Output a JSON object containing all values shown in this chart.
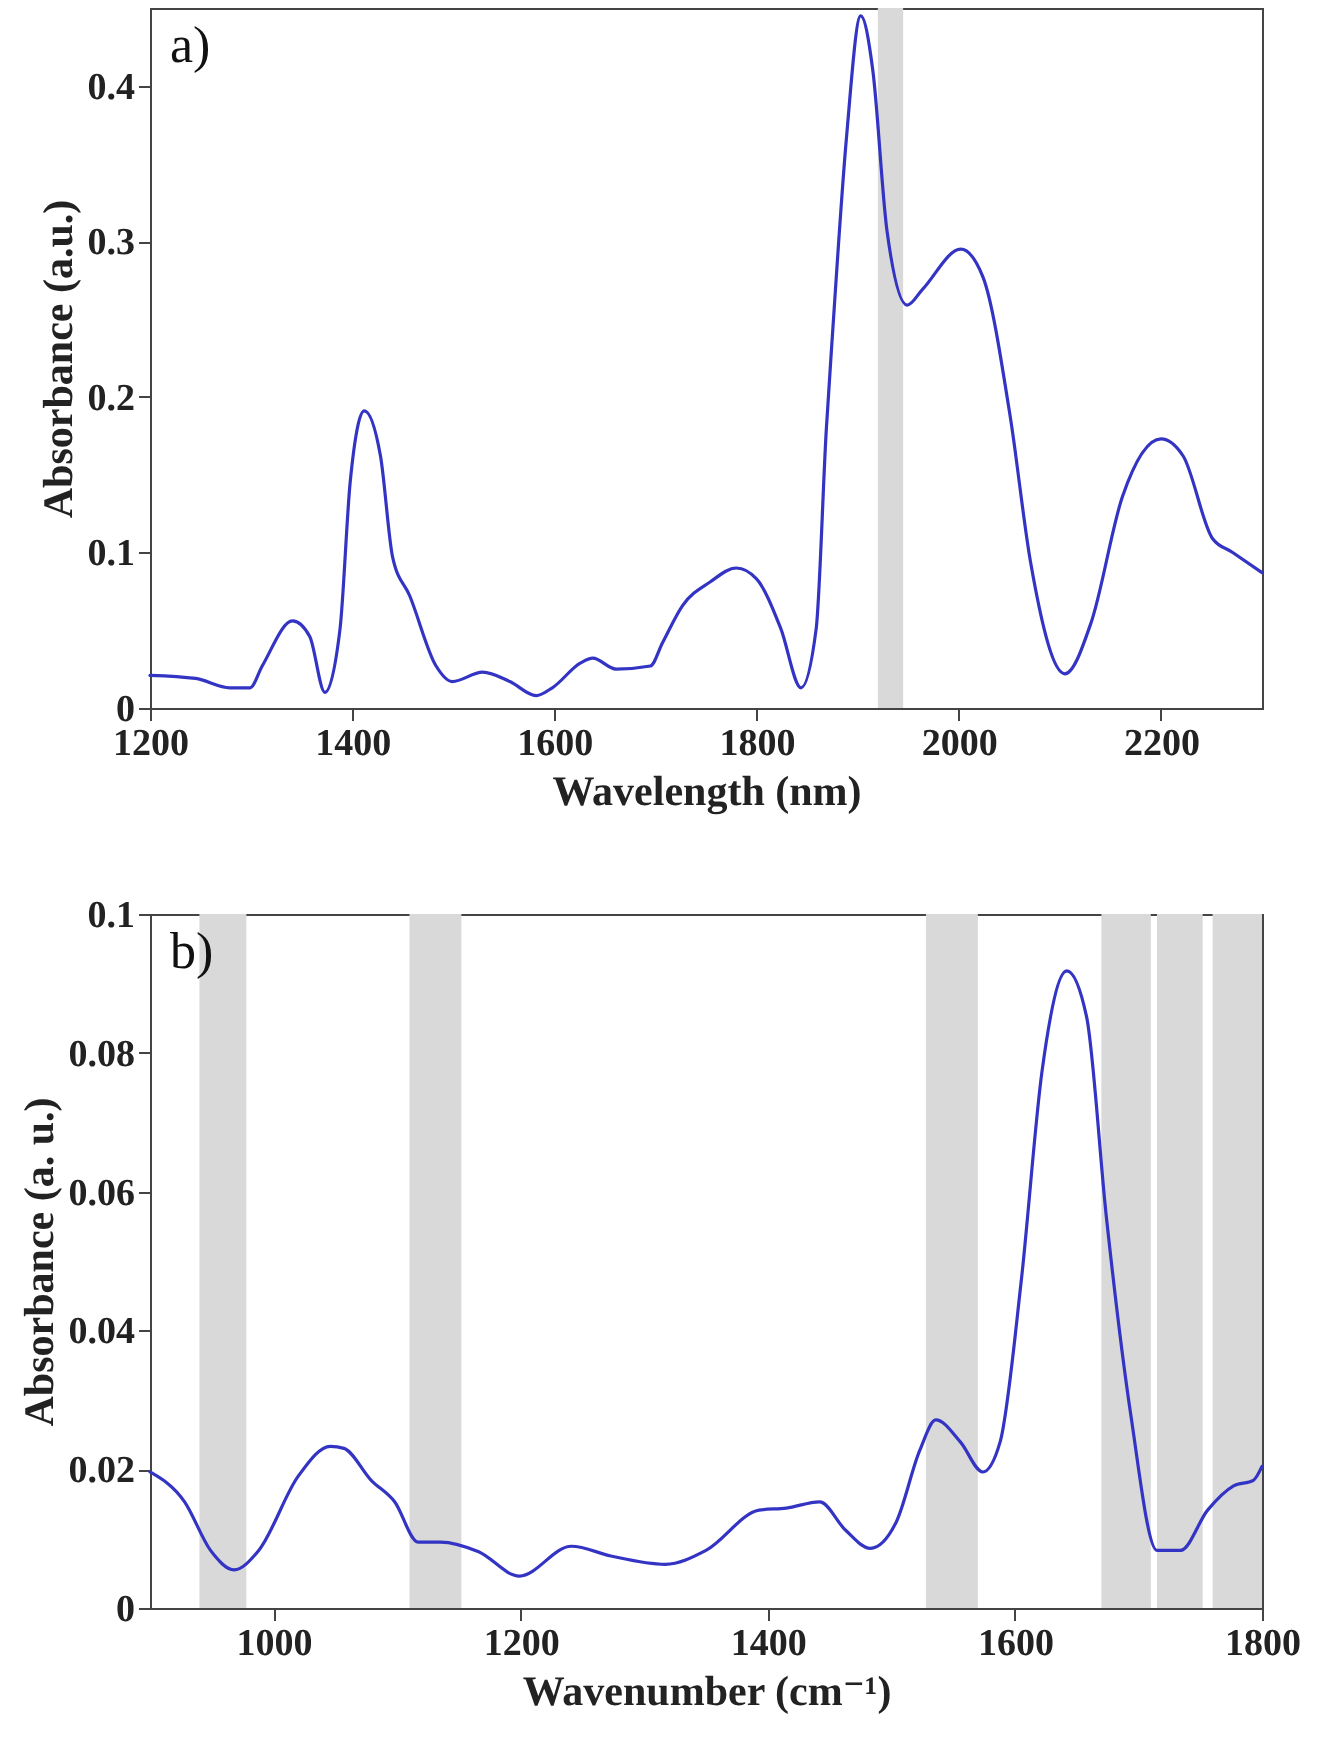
{
  "chart_data": [
    {
      "type": "line",
      "xlabel": "Wavelength (nm)",
      "ylabel": "Absorbance (a.u.)",
      "annotations": [
        "a)"
      ],
      "xlim": [
        1200,
        2300
      ],
      "ylim": [
        0,
        0.45
      ],
      "xticks": [
        1200,
        1400,
        1600,
        1800,
        2000,
        2200
      ],
      "yticks": [
        0,
        0.1,
        0.2,
        0.3,
        0.4
      ],
      "grid": false,
      "marker": "none",
      "line_style": "solid",
      "bands": [
        {
          "axis": "x",
          "from": 1920,
          "to": 1945,
          "color": "#d9d9d9"
        }
      ],
      "series": [
        {
          "color": "#3434c4",
          "x": [
            1200,
            1245,
            1279,
            1299,
            1311,
            1341,
            1358,
            1373,
            1388,
            1398,
            1412,
            1428,
            1440,
            1457,
            1483,
            1499,
            1529,
            1556,
            1582,
            1598,
            1626,
            1638,
            1661,
            1695,
            1707,
            1727,
            1754,
            1780,
            1800,
            1824,
            1844,
            1859,
            1869,
            1875,
            1889,
            1903,
            1915,
            1929,
            1949,
            1964,
            2002,
            2024,
            2051,
            2071,
            2105,
            2131,
            2162,
            2200,
            2222,
            2251,
            2271,
            2300
          ],
          "values": [
            0.021,
            0.019,
            0.013,
            0.013,
            0.027,
            0.056,
            0.046,
            0.01,
            0.051,
            0.145,
            0.191,
            0.162,
            0.097,
            0.072,
            0.027,
            0.017,
            0.023,
            0.017,
            0.008,
            0.013,
            0.029,
            0.032,
            0.025,
            0.027,
            0.042,
            0.066,
            0.081,
            0.09,
            0.083,
            0.051,
            0.013,
            0.051,
            0.179,
            0.239,
            0.367,
            0.445,
            0.41,
            0.307,
            0.259,
            0.269,
            0.295,
            0.277,
            0.187,
            0.094,
            0.022,
            0.055,
            0.136,
            0.173,
            0.162,
            0.109,
            0.1,
            0.087
          ]
        }
      ]
    },
    {
      "type": "line",
      "xlabel": "Wavenumber (cm⁻¹)",
      "ylabel": "Absorbance (a. u.)",
      "annotations": [
        "b)"
      ],
      "xlim": [
        900,
        1800
      ],
      "ylim": [
        0,
        0.1
      ],
      "xticks": [
        1000,
        1200,
        1400,
        1600,
        1800
      ],
      "yticks": [
        0,
        0.02,
        0.04,
        0.06,
        0.08,
        0.1
      ],
      "grid": false,
      "marker": "none",
      "line_style": "solid",
      "bands": [
        {
          "axis": "x",
          "from": 940,
          "to": 978,
          "color": "#d9d9d9"
        },
        {
          "axis": "x",
          "from": 1110,
          "to": 1152,
          "color": "#d9d9d9"
        },
        {
          "axis": "x",
          "from": 1528,
          "to": 1570,
          "color": "#d9d9d9"
        },
        {
          "axis": "x",
          "from": 1670,
          "to": 1710,
          "color": "#d9d9d9"
        },
        {
          "axis": "x",
          "from": 1715,
          "to": 1752,
          "color": "#d9d9d9"
        },
        {
          "axis": "x",
          "from": 1760,
          "to": 1800,
          "color": "#d9d9d9"
        }
      ],
      "series": [
        {
          "color": "#3434c4",
          "x": [
            900,
            928,
            949,
            968,
            988,
            1020,
            1046,
            1057,
            1079,
            1098,
            1117,
            1135,
            1166,
            1199,
            1241,
            1273,
            1317,
            1350,
            1393,
            1415,
            1442,
            1463,
            1483,
            1504,
            1523,
            1536,
            1556,
            1574,
            1588,
            1605,
            1622,
            1642,
            1658,
            1674,
            1694,
            1715,
            1734,
            1756,
            1777,
            1793,
            1800
          ],
          "values": [
            0.0196,
            0.0153,
            0.0083,
            0.0055,
            0.0083,
            0.019,
            0.0233,
            0.023,
            0.0184,
            0.0153,
            0.0095,
            0.0095,
            0.0081,
            0.0046,
            0.0089,
            0.0075,
            0.0063,
            0.0083,
            0.0141,
            0.0144,
            0.0153,
            0.0112,
            0.0086,
            0.0124,
            0.0227,
            0.0271,
            0.0239,
            0.0196,
            0.0239,
            0.0469,
            0.0774,
            0.0918,
            0.0852,
            0.0564,
            0.0276,
            0.0083,
            0.0083,
            0.0141,
            0.0176,
            0.0184,
            0.0204
          ]
        }
      ]
    }
  ]
}
